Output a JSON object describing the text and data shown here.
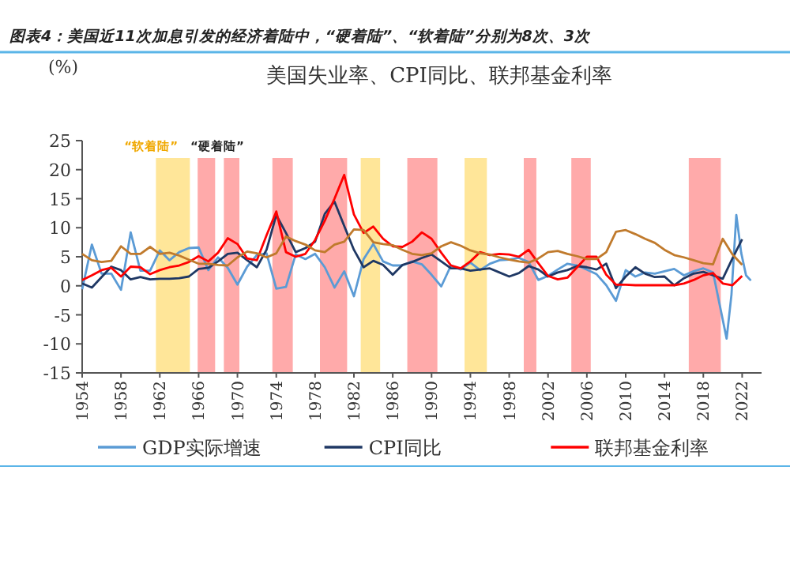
{
  "chart_data": {
    "type": "line",
    "title": "图表4：美国近11次加息引发的经济着陆中，“硬着陆”、“软着陆”分别为8次、3次",
    "subtitle": "美国失业率、CPI同比、联邦基金利率",
    "ylabel": "(%)",
    "x": [
      1954,
      1955,
      1956,
      1957,
      1958,
      1959,
      1960,
      1961,
      1962,
      1963,
      1964,
      1965,
      1966,
      1967,
      1968,
      1969,
      1970,
      1971,
      1972,
      1973,
      1974,
      1975,
      1976,
      1977,
      1978,
      1979,
      1980,
      1981,
      1982,
      1983,
      1984,
      1985,
      1986,
      1987,
      1988,
      1989,
      1990,
      1991,
      1992,
      1993,
      1994,
      1995,
      1996,
      1997,
      1998,
      1999,
      2000,
      2001,
      2002,
      2003,
      2004,
      2005,
      2006,
      2007,
      2008,
      2009,
      2010,
      2011,
      2012,
      2013,
      2014,
      2015,
      2016,
      2017,
      2018,
      2019,
      2020,
      2021,
      2022
    ],
    "series": [
      {
        "name": "GDP实际增速",
        "color": "#5b9bd5",
        "x": [
          1954,
          1955,
          1956,
          1957,
          1958,
          1959,
          1960,
          1961,
          1962,
          1963,
          1964,
          1965,
          1966,
          1967,
          1968,
          1969,
          1970,
          1971,
          1972,
          1973,
          1974,
          1975,
          1976,
          1977,
          1978,
          1979,
          1980,
          1981,
          1982,
          1983,
          1984,
          1985,
          1986,
          1987,
          1988,
          1989,
          1990,
          1991,
          1992,
          1993,
          1994,
          1995,
          1996,
          1997,
          1998,
          1999,
          2000,
          2001,
          2002,
          2003,
          2004,
          2005,
          2006,
          2007,
          2008,
          2009,
          2010,
          2011,
          2012,
          2013,
          2014,
          2015,
          2016,
          2017,
          2018,
          2019,
          2020.4,
          2020.9,
          2021.4,
          2021.9,
          2022.4,
          2022.9
        ],
        "values": [
          -0.6,
          7.1,
          2.1,
          2.1,
          -0.7,
          9.2,
          2.6,
          2.6,
          6.1,
          4.4,
          5.8,
          6.5,
          6.6,
          2.7,
          4.9,
          3.1,
          0.2,
          3.3,
          5.3,
          5.6,
          -0.5,
          -0.2,
          5.4,
          4.6,
          5.5,
          3.2,
          -0.3,
          2.5,
          -1.8,
          4.6,
          7.2,
          4.2,
          3.5,
          3.5,
          4.2,
          3.7,
          1.9,
          -0.1,
          3.5,
          2.8,
          4.0,
          2.7,
          3.8,
          4.4,
          4.5,
          4.8,
          4.1,
          1.0,
          1.7,
          2.8,
          3.8,
          3.5,
          2.8,
          2.0,
          0.1,
          -2.6,
          2.7,
          1.6,
          2.3,
          2.1,
          2.5,
          2.9,
          1.8,
          2.5,
          3.0,
          2.3,
          -9.1,
          -1.5,
          12.2,
          5.7,
          1.8,
          0.9
        ]
      },
      {
        "name": "CPI同比",
        "color": "#1f3864",
        "values": [
          0.4,
          -0.3,
          1.5,
          3.3,
          2.7,
          1.1,
          1.5,
          1.1,
          1.2,
          1.2,
          1.3,
          1.6,
          2.9,
          3.1,
          4.2,
          5.5,
          5.7,
          4.4,
          3.2,
          6.2,
          12.2,
          9.1,
          5.8,
          6.5,
          7.6,
          12.4,
          14.5,
          10.3,
          6.2,
          3.2,
          4.3,
          3.6,
          1.9,
          3.6,
          4.1,
          4.8,
          5.4,
          4.2,
          3.0,
          3.0,
          2.6,
          2.8,
          3.0,
          2.3,
          1.6,
          2.2,
          3.4,
          2.8,
          1.6,
          2.3,
          2.7,
          3.4,
          3.2,
          2.8,
          3.8,
          -0.4,
          1.6,
          3.2,
          2.1,
          1.5,
          1.6,
          0.1,
          1.3,
          2.1,
          2.4,
          1.8,
          1.2,
          4.7,
          8.0
        ]
      },
      {
        "name": "联邦基金利率",
        "color": "#ff0000",
        "values": [
          1.0,
          1.8,
          2.7,
          3.1,
          1.6,
          3.3,
          3.2,
          2.0,
          2.7,
          3.2,
          3.5,
          4.1,
          5.1,
          4.2,
          5.7,
          8.2,
          7.2,
          4.7,
          4.4,
          8.7,
          12.8,
          5.8,
          5.0,
          5.5,
          7.9,
          11.2,
          15.0,
          19.1,
          12.3,
          9.1,
          10.2,
          8.1,
          6.8,
          6.7,
          7.6,
          9.2,
          8.1,
          5.7,
          3.5,
          3.0,
          4.2,
          5.8,
          5.3,
          5.5,
          5.4,
          5.0,
          6.2,
          3.9,
          1.7,
          1.1,
          1.4,
          3.2,
          5.0,
          5.0,
          1.9,
          0.2,
          0.2,
          0.1,
          0.1,
          0.1,
          0.1,
          0.1,
          0.4,
          1.0,
          1.8,
          2.2,
          0.4,
          0.1,
          1.7
        ]
      },
      {
        "color": "#c07a2c",
        "values": [
          5.5,
          4.4,
          4.1,
          4.3,
          6.8,
          5.5,
          5.5,
          6.7,
          5.5,
          5.7,
          5.2,
          4.5,
          3.8,
          3.8,
          3.6,
          3.5,
          4.9,
          5.9,
          5.6,
          4.9,
          5.6,
          8.5,
          7.7,
          7.1,
          6.1,
          5.8,
          7.1,
          7.6,
          9.7,
          9.6,
          7.5,
          7.2,
          7.0,
          6.2,
          5.5,
          5.3,
          5.6,
          6.8,
          7.5,
          6.9,
          6.1,
          5.6,
          5.4,
          4.9,
          4.5,
          4.2,
          4.0,
          4.7,
          5.8,
          6.0,
          5.5,
          5.1,
          4.6,
          4.6,
          5.8,
          9.3,
          9.6,
          8.9,
          8.1,
          7.4,
          6.2,
          5.3,
          4.9,
          4.4,
          3.9,
          3.7,
          8.1,
          5.4,
          3.6
        ]
      }
    ],
    "xlim": [
      1954,
      2024
    ],
    "xticks": [
      1954,
      1958,
      1962,
      1966,
      1970,
      1974,
      1978,
      1982,
      1986,
      1990,
      1994,
      1998,
      2002,
      2006,
      2010,
      2014,
      2018,
      2022
    ],
    "ylim": [
      -15,
      25
    ],
    "yticks": [
      -15,
      -10,
      -5,
      0,
      5,
      10,
      15,
      20,
      25
    ],
    "bands": [
      {
        "axis": "x",
        "from": 1961.6,
        "to": 1965.1,
        "color": "#ffe699",
        "label": "“软着陆”"
      },
      {
        "axis": "x",
        "from": 1965.9,
        "to": 1967.7,
        "color": "#ffaaaa",
        "label": "“硬着陆”"
      },
      {
        "axis": "x",
        "from": 1968.6,
        "to": 1970.2,
        "color": "#ffaaaa"
      },
      {
        "axis": "x",
        "from": 1973.6,
        "to": 1975.7,
        "color": "#ffaaaa"
      },
      {
        "axis": "x",
        "from": 1978.5,
        "to": 1981.3,
        "color": "#ffaaaa"
      },
      {
        "axis": "x",
        "from": 1982.7,
        "to": 1984.7,
        "color": "#ffe699"
      },
      {
        "axis": "x",
        "from": 1987.5,
        "to": 1990.6,
        "color": "#ffaaaa"
      },
      {
        "axis": "x",
        "from": 1993.4,
        "to": 1995.7,
        "color": "#ffe699"
      },
      {
        "axis": "x",
        "from": 1999.5,
        "to": 2000.8,
        "color": "#ffaaaa"
      },
      {
        "axis": "x",
        "from": 2004.4,
        "to": 2006.4,
        "color": "#ffaaaa"
      },
      {
        "axis": "x",
        "from": 2016.5,
        "to": 2019.8,
        "color": "#ffaaaa"
      }
    ],
    "legend": "bottom",
    "line_style": "solid",
    "marker": "none",
    "grid": false
  }
}
